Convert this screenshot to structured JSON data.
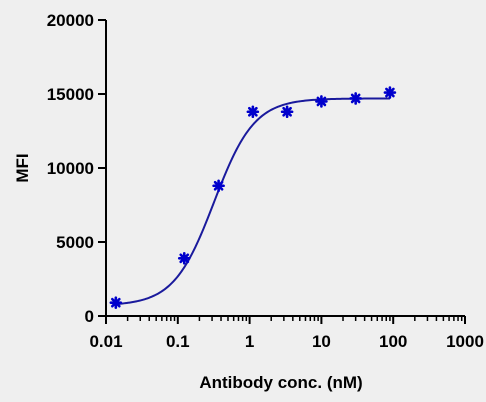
{
  "chart_data": {
    "type": "scatter",
    "x_scale": "log",
    "x_tick_labels": [
      "0.01",
      "0.1",
      "1",
      "10",
      "100",
      "1000"
    ],
    "y_tick_labels": [
      "0",
      "5000",
      "10000",
      "15000",
      "20000"
    ],
    "xlabel": "Antibody conc. (nM)",
    "ylabel": "MFI",
    "xlim": [
      0.01,
      1000
    ],
    "ylim": [
      0,
      20000
    ],
    "grid": false,
    "legend": "none",
    "series": [
      {
        "x": [
          0.0137,
          0.123,
          0.37,
          1.11,
          3.33,
          10,
          30,
          90
        ],
        "y": [
          900,
          3900,
          8800,
          13800,
          13800,
          14500,
          14700,
          15100
        ],
        "color": "#0000cc",
        "marker": "star"
      }
    ],
    "fit_curve": {
      "model": "4PL",
      "bottom": 700,
      "top": 14700,
      "ec50": 0.32,
      "hill": 1.55,
      "color": "#1a1a9c"
    }
  }
}
